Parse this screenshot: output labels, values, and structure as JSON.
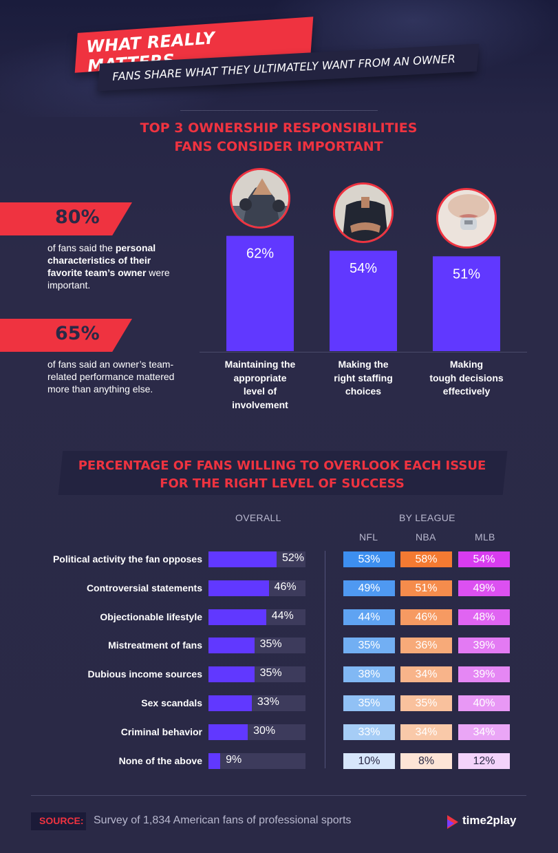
{
  "header": {
    "title": "WHAT REALLY MATTERS",
    "subtitle": "FANS SHARE WHAT THEY ULTIMATELY WANT FROM AN OWNER"
  },
  "section1": {
    "title_line1": "TOP 3 OWNERSHIP RESPONSIBILITIES",
    "title_line2": "FANS CONSIDER IMPORTANT",
    "stats": [
      {
        "value": "80%",
        "desc_pre": "of fans said the ",
        "desc_bold": "personal characteristics of their favorite team’s owner",
        "desc_post": " were important."
      },
      {
        "value": "65%",
        "desc_pre": "of fans said an owner’s team-related performance mattered more than anything else.",
        "desc_bold": "",
        "desc_post": ""
      }
    ],
    "photo_icons": [
      "team-hands-photo-icon",
      "referee-back-photo-icon",
      "whistle-photo-icon"
    ]
  },
  "section2": {
    "title_line1": "PERCENTAGE OF FANS WILLING TO OVERLOOK EACH ISSUE",
    "title_line2": "FOR THE RIGHT LEVEL OF SUCCESS",
    "overall_header": "OVERALL",
    "league_header": "BY LEAGUE",
    "league_names": [
      "NFL",
      "NBA",
      "MLB"
    ]
  },
  "footer": {
    "source_label": "SOURCE:",
    "source_text": "Survey of 1,834 American fans of professional sports",
    "brand": "time2play"
  },
  "colors": {
    "accent_red": "#ef3340",
    "bar_purple": "#6138ff",
    "nfl_shades": [
      "#3d8ff0",
      "#4f99f1",
      "#5fa3f2",
      "#72aff3",
      "#81b8f4",
      "#91c1f5",
      "#a6cdf6",
      "#d7e6fb"
    ],
    "nba_shades": [
      "#f47a32",
      "#f58c4c",
      "#f69a62",
      "#f7aa79",
      "#f8b48a",
      "#f9c19d",
      "#f9c9a9",
      "#fde4d6"
    ],
    "mlb_shades": [
      "#d83cf0",
      "#dc50f1",
      "#e064f2",
      "#e37af3",
      "#e587f4",
      "#e898f5",
      "#eaa6f6",
      "#f3d3fa"
    ]
  },
  "chart_data": [
    {
      "type": "bar",
      "title": "TOP 3 OWNERSHIP RESPONSIBILITIES FANS CONSIDER IMPORTANT",
      "categories": [
        "Maintaining the appropriate level of involvement",
        "Making the right staffing choices",
        "Making tough decisions effectively"
      ],
      "values": [
        62,
        54,
        51
      ],
      "value_labels": [
        "62%",
        "54%",
        "51%"
      ],
      "ylim": [
        0,
        100
      ]
    },
    {
      "type": "bar",
      "orientation": "horizontal",
      "title": "PERCENTAGE OF FANS WILLING TO OVERLOOK EACH ISSUE FOR THE RIGHT LEVEL OF SUCCESS",
      "categories": [
        "Political activity the fan opposes",
        "Controversial statements",
        "Objectionable lifestyle",
        "Mistreatment of fans",
        "Dubious income sources",
        "Sex scandals",
        "Criminal behavior",
        "None of the above"
      ],
      "overall": [
        52,
        46,
        44,
        35,
        35,
        33,
        30,
        9
      ],
      "overall_labels": [
        "52%",
        "46%",
        "44%",
        "35%",
        "35%",
        "33%",
        "30%",
        "9%"
      ],
      "series": [
        {
          "name": "NFL",
          "values": [
            53,
            49,
            44,
            35,
            38,
            35,
            33,
            10
          ],
          "labels": [
            "53%",
            "49%",
            "44%",
            "35%",
            "38%",
            "35%",
            "33%",
            "10%"
          ]
        },
        {
          "name": "NBA",
          "values": [
            58,
            51,
            46,
            36,
            34,
            35,
            34,
            8
          ],
          "labels": [
            "58%",
            "51%",
            "46%",
            "36%",
            "34%",
            "35%",
            "34%",
            "8%"
          ]
        },
        {
          "name": "MLB",
          "values": [
            54,
            49,
            48,
            39,
            39,
            40,
            34,
            12
          ],
          "labels": [
            "54%",
            "49%",
            "48%",
            "39%",
            "39%",
            "40%",
            "34%",
            "12%"
          ]
        }
      ],
      "xlim": [
        0,
        100
      ]
    }
  ]
}
